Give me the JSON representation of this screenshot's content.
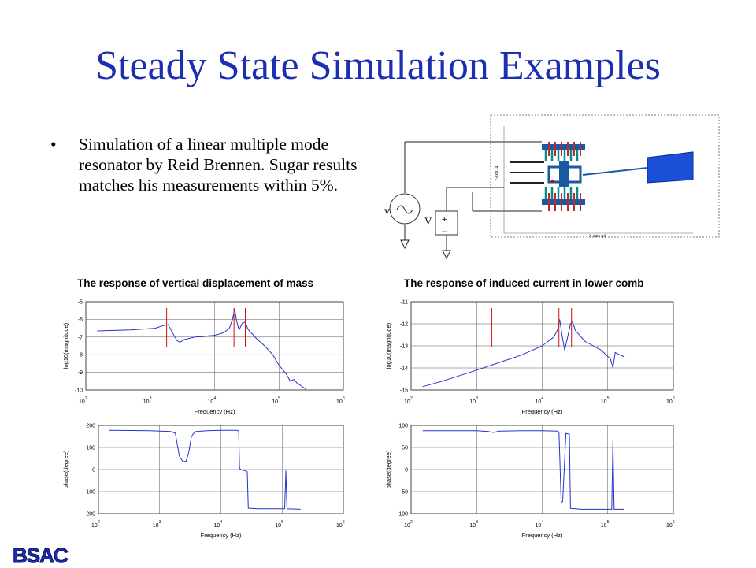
{
  "slide": {
    "title": "Steady State Simulation Examples",
    "bullet": "Simulation of a linear multiple mode resonator by Reid Brennen. Sugar results matches his measurements within 5%.",
    "bullet_marker": "•",
    "logo_text": "BSAC",
    "colors": {
      "title": "#1c2fb3",
      "trace": "#2233cc",
      "marker": "#cc1111"
    }
  },
  "schematic": {
    "source_v_label": "v",
    "source_V_label": "V",
    "plus": "+",
    "minus": "–",
    "inset_ylabel": "Y-axis (μ)",
    "inset_xlabel": "X-axis (μ)"
  },
  "chart_data": [
    {
      "type": "line",
      "title": "The response of vertical displacement of mass",
      "xlabel": "Frequency (Hz)",
      "ylabel": "log10(magnitude)",
      "xscale": "log",
      "xlim": [
        100,
        1000000
      ],
      "ylim": [
        -10,
        -5
      ],
      "xticks": [
        "2",
        "3",
        "4",
        "5",
        "6"
      ],
      "xtick_base": "10",
      "yticks": [
        "-5",
        "-6",
        "-7",
        "-8",
        "-9",
        "-10"
      ],
      "grid": true,
      "series": [
        {
          "values": [
            [
              150,
              -6.65
            ],
            [
              500,
              -6.6
            ],
            [
              1200,
              -6.5
            ],
            [
              1600,
              -6.35
            ],
            [
              1900,
              -6.3
            ],
            [
              2100,
              -6.6
            ],
            [
              2600,
              -7.2
            ],
            [
              2900,
              -7.3
            ],
            [
              3300,
              -7.15
            ],
            [
              5000,
              -7.0
            ],
            [
              10000,
              -6.9
            ],
            [
              14000,
              -6.75
            ],
            [
              17000,
              -6.5
            ],
            [
              19000,
              -6.0
            ],
            [
              20500,
              -5.4
            ],
            [
              22000,
              -6.1
            ],
            [
              24000,
              -6.6
            ],
            [
              27000,
              -6.2
            ],
            [
              30000,
              -6.15
            ],
            [
              33000,
              -6.55
            ],
            [
              45000,
              -7.1
            ],
            [
              60000,
              -7.5
            ],
            [
              80000,
              -8.0
            ],
            [
              100000,
              -8.6
            ],
            [
              130000,
              -9.1
            ],
            [
              150000,
              -9.5
            ],
            [
              170000,
              -9.4
            ],
            [
              190000,
              -9.6
            ],
            [
              260000,
              -9.95
            ]
          ]
        }
      ],
      "markers_x": [
        1800,
        20000,
        30000
      ]
    },
    {
      "type": "line",
      "xlabel": "Frequency (Hz)",
      "ylabel": "phase(degree)",
      "xscale": "log",
      "xlim": [
        100,
        1000000
      ],
      "ylim": [
        -200,
        200
      ],
      "xticks": [
        "2",
        "3",
        "4",
        "5",
        "6"
      ],
      "xtick_base": "10",
      "yticks": [
        "200",
        "100",
        "0",
        "-100",
        "-200"
      ],
      "grid": true,
      "series": [
        {
          "values": [
            [
              150,
              178
            ],
            [
              700,
              176
            ],
            [
              1500,
              172
            ],
            [
              1800,
              165
            ],
            [
              1950,
              110
            ],
            [
              2100,
              60
            ],
            [
              2400,
              35
            ],
            [
              2700,
              38
            ],
            [
              3000,
              80
            ],
            [
              3300,
              150
            ],
            [
              3800,
              172
            ],
            [
              6000,
              176
            ],
            [
              10000,
              178
            ],
            [
              18000,
              178
            ],
            [
              19500,
              175
            ],
            [
              20200,
              5
            ],
            [
              22000,
              -2
            ],
            [
              25000,
              -5
            ],
            [
              27000,
              -10
            ],
            [
              28000,
              -175
            ],
            [
              40000,
              -178
            ],
            [
              90000,
              -178
            ],
            [
              110000,
              -178
            ],
            [
              115000,
              -5
            ],
            [
              120000,
              -178
            ],
            [
              200000,
              -180
            ]
          ]
        }
      ]
    },
    {
      "type": "line",
      "title": "The response of induced current in lower comb",
      "xlabel": "Frequency (Hz)",
      "ylabel": "log10(magnitude)",
      "xscale": "log",
      "xlim": [
        100,
        1000000
      ],
      "ylim": [
        -15,
        -11
      ],
      "xticks": [
        "2",
        "3",
        "4",
        "5",
        "6"
      ],
      "xtick_base": "10",
      "yticks": [
        "-11",
        "-12",
        "-13",
        "-14",
        "-15"
      ],
      "grid": true,
      "series": [
        {
          "values": [
            [
              150,
              -14.85
            ],
            [
              300,
              -14.6
            ],
            [
              1000,
              -14.1
            ],
            [
              2000,
              -13.8
            ],
            [
              5000,
              -13.4
            ],
            [
              10000,
              -13.0
            ],
            [
              15000,
              -12.6
            ],
            [
              17000,
              -12.3
            ],
            [
              18500,
              -11.8
            ],
            [
              20000,
              -12.5
            ],
            [
              22000,
              -13.2
            ],
            [
              24000,
              -12.7
            ],
            [
              27000,
              -12.0
            ],
            [
              29000,
              -11.9
            ],
            [
              32000,
              -12.3
            ],
            [
              45000,
              -12.8
            ],
            [
              80000,
              -13.2
            ],
            [
              110000,
              -13.6
            ],
            [
              120000,
              -14.0
            ],
            [
              130000,
              -13.3
            ],
            [
              150000,
              -13.4
            ],
            [
              180000,
              -13.5
            ]
          ]
        }
      ],
      "markers_x": [
        1700,
        18000,
        28000
      ]
    },
    {
      "type": "line",
      "xlabel": "Frequency (Hz)",
      "ylabel": "phase(degree)",
      "xscale": "log",
      "xlim": [
        100,
        1000000
      ],
      "ylim": [
        -100,
        100
      ],
      "xticks": [
        "2",
        "3",
        "4",
        "5",
        "6"
      ],
      "xtick_base": "10",
      "yticks": [
        "100",
        "50",
        "0",
        "-50",
        "-100"
      ],
      "grid": true,
      "series": [
        {
          "values": [
            [
              150,
              88
            ],
            [
              1000,
              88
            ],
            [
              1500,
              86
            ],
            [
              1800,
              84
            ],
            [
              2200,
              87
            ],
            [
              5000,
              88
            ],
            [
              10000,
              88
            ],
            [
              17000,
              87
            ],
            [
              18000,
              85
            ],
            [
              19500,
              -75
            ],
            [
              20500,
              -72
            ],
            [
              23000,
              82
            ],
            [
              26000,
              80
            ],
            [
              27000,
              -88
            ],
            [
              40000,
              -90
            ],
            [
              100000,
              -90
            ],
            [
              115000,
              -90
            ],
            [
              120000,
              65
            ],
            [
              125000,
              -90
            ],
            [
              180000,
              -90
            ]
          ]
        }
      ]
    }
  ]
}
